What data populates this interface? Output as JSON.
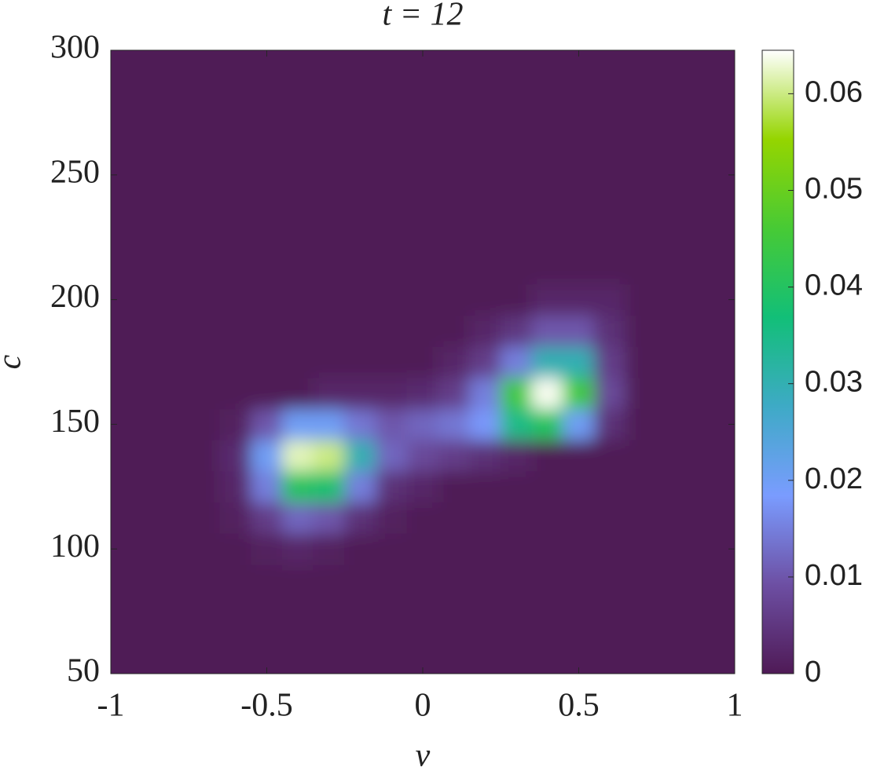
{
  "chart_data": {
    "type": "contour",
    "title": "t = 12",
    "x_label": "v",
    "y_label": "c",
    "x": [
      -1,
      -0.9,
      -0.8,
      -0.7,
      -0.6,
      -0.5,
      -0.4,
      -0.3,
      -0.2,
      -0.1,
      0,
      0.1,
      0.2,
      0.3,
      0.4,
      0.5,
      0.6,
      0.7,
      0.8,
      0.9,
      1
    ],
    "y": [
      50,
      62.5,
      75,
      87.5,
      100,
      112.5,
      125,
      137.5,
      150,
      162.5,
      175,
      187.5,
      200,
      212.5,
      225,
      237.5,
      250,
      262.5,
      275,
      287.5,
      300
    ],
    "z": [
      [
        0,
        0,
        0,
        0,
        0,
        0,
        0,
        0,
        0,
        0,
        0,
        0,
        0,
        0,
        0,
        0,
        0,
        0,
        0,
        0,
        0
      ],
      [
        0,
        0,
        0,
        0,
        0,
        0,
        0,
        0,
        0,
        0,
        0,
        0,
        0,
        0,
        0,
        0,
        0,
        0,
        0,
        0,
        0
      ],
      [
        0,
        0,
        0,
        0,
        0,
        0,
        0,
        0,
        0,
        0,
        0,
        0,
        0,
        0,
        0,
        0,
        0,
        0,
        0,
        0,
        0
      ],
      [
        0,
        0,
        0,
        0,
        0,
        0,
        0,
        0,
        0,
        0,
        0,
        0,
        0,
        0,
        0,
        0,
        0,
        0,
        0,
        0,
        0
      ],
      [
        0,
        0,
        0,
        0,
        0,
        0.001,
        0.002,
        0.001,
        0,
        0,
        0,
        0,
        0,
        0,
        0,
        0,
        0,
        0,
        0,
        0,
        0
      ],
      [
        0,
        0,
        0,
        0,
        0.001,
        0.006,
        0.012,
        0.01,
        0.004,
        0.001,
        0,
        0,
        0,
        0,
        0,
        0,
        0,
        0,
        0,
        0,
        0
      ],
      [
        0,
        0,
        0,
        0,
        0.002,
        0.015,
        0.04,
        0.038,
        0.015,
        0.004,
        0.002,
        0,
        0,
        0,
        0,
        0,
        0,
        0,
        0,
        0,
        0
      ],
      [
        0,
        0,
        0,
        0,
        0.003,
        0.02,
        0.062,
        0.06,
        0.03,
        0.012,
        0.008,
        0.006,
        0.004,
        0.002,
        0,
        0,
        0,
        0,
        0,
        0,
        0
      ],
      [
        0,
        0,
        0,
        0,
        0.001,
        0.01,
        0.02,
        0.02,
        0.014,
        0.01,
        0.012,
        0.014,
        0.018,
        0.035,
        0.04,
        0.02,
        0.004,
        0,
        0,
        0,
        0
      ],
      [
        0,
        0,
        0,
        0,
        0,
        0,
        0,
        0.002,
        0.002,
        0.002,
        0.003,
        0.006,
        0.015,
        0.045,
        0.064,
        0.045,
        0.008,
        0,
        0,
        0,
        0
      ],
      [
        0,
        0,
        0,
        0,
        0,
        0,
        0,
        0,
        0,
        0,
        0,
        0.002,
        0.006,
        0.015,
        0.03,
        0.03,
        0.006,
        0,
        0,
        0,
        0
      ],
      [
        0,
        0,
        0,
        0,
        0,
        0,
        0,
        0,
        0,
        0,
        0,
        0,
        0.002,
        0.005,
        0.01,
        0.01,
        0.004,
        0,
        0,
        0,
        0
      ],
      [
        0,
        0,
        0,
        0,
        0,
        0,
        0,
        0,
        0,
        0,
        0,
        0,
        0,
        0,
        0.002,
        0.002,
        0.002,
        0,
        0,
        0,
        0
      ],
      [
        0,
        0,
        0,
        0,
        0,
        0,
        0,
        0,
        0,
        0,
        0,
        0,
        0,
        0,
        0,
        0,
        0,
        0,
        0,
        0,
        0
      ],
      [
        0,
        0,
        0,
        0,
        0,
        0,
        0,
        0,
        0,
        0,
        0,
        0,
        0,
        0,
        0,
        0,
        0,
        0,
        0,
        0,
        0
      ],
      [
        0,
        0,
        0,
        0,
        0,
        0,
        0,
        0,
        0,
        0,
        0,
        0,
        0,
        0,
        0,
        0,
        0,
        0,
        0,
        0,
        0
      ],
      [
        0,
        0,
        0,
        0,
        0,
        0,
        0,
        0,
        0,
        0,
        0,
        0,
        0,
        0,
        0,
        0,
        0,
        0,
        0,
        0,
        0
      ],
      [
        0,
        0,
        0,
        0,
        0,
        0,
        0,
        0,
        0,
        0,
        0,
        0,
        0,
        0,
        0,
        0,
        0,
        0,
        0,
        0,
        0
      ],
      [
        0,
        0,
        0,
        0,
        0,
        0,
        0,
        0,
        0,
        0,
        0,
        0,
        0,
        0,
        0,
        0,
        0,
        0,
        0,
        0,
        0
      ],
      [
        0,
        0,
        0,
        0,
        0,
        0,
        0,
        0,
        0,
        0,
        0,
        0,
        0,
        0,
        0,
        0,
        0,
        0,
        0,
        0,
        0
      ],
      [
        0,
        0,
        0,
        0,
        0,
        0,
        0,
        0,
        0,
        0,
        0,
        0,
        0,
        0,
        0,
        0,
        0,
        0,
        0,
        0,
        0
      ]
    ],
    "xlim": [
      -1,
      1
    ],
    "xticks": [
      -1,
      -0.5,
      0,
      0.5,
      1
    ],
    "ylim": [
      50,
      300
    ],
    "yticks": [
      50,
      100,
      150,
      200,
      250,
      300
    ],
    "zlim": [
      0,
      0.0645
    ],
    "zticks": [
      0,
      0.01,
      0.02,
      0.03,
      0.04,
      0.05,
      0.06
    ],
    "colormap": [
      "#4f1a56",
      "#6d4fa3",
      "#7a9cff",
      "#3eaac6",
      "#12bf78",
      "#47ca35",
      "#95d500",
      "#ffffff"
    ]
  }
}
